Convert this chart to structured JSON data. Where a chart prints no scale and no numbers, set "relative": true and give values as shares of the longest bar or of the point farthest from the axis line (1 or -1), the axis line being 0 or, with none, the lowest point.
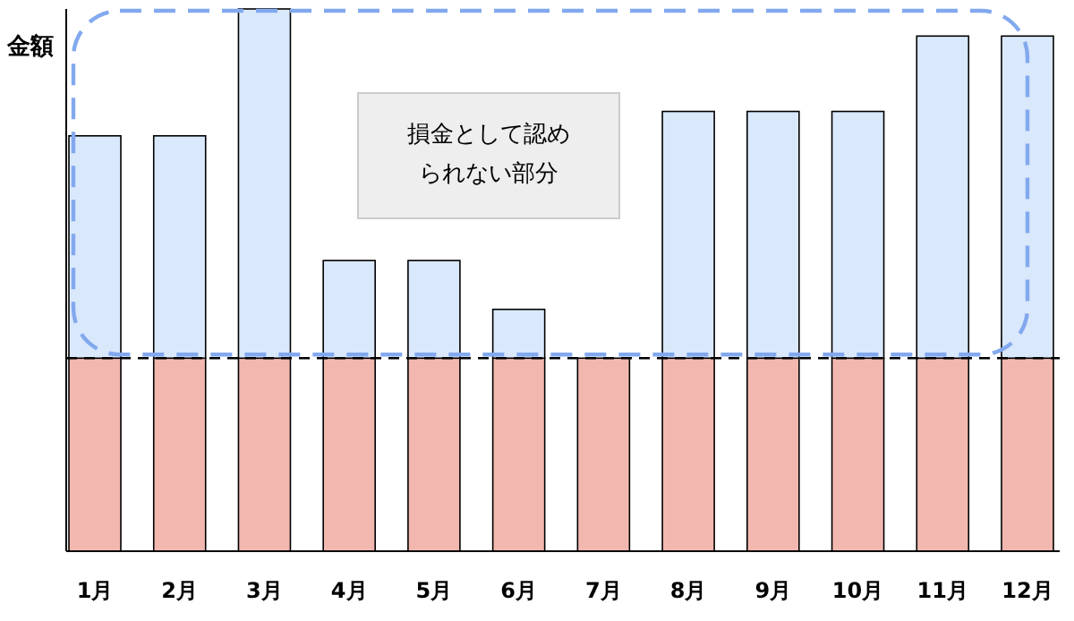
{
  "chart_data": {
    "type": "bar",
    "stacked": true,
    "relative": true,
    "ylabel": "金額",
    "categories": [
      "1月",
      "2月",
      "3月",
      "4月",
      "5月",
      "6月",
      "7月",
      "8月",
      "9月",
      "10月",
      "11月",
      "12月"
    ],
    "series": [
      {
        "color": "#f2b8b0",
        "values": [
          0.356,
          0.356,
          0.356,
          0.356,
          0.356,
          0.356,
          0.356,
          0.356,
          0.356,
          0.356,
          0.356,
          0.356
        ]
      },
      {
        "color": "#dae8fc",
        "values": [
          0.41,
          0.41,
          0.644,
          0.18,
          0.18,
          0.09,
          0,
          0.455,
          0.455,
          0.455,
          0.594,
          0.594
        ]
      }
    ],
    "ref_lines": [
      {
        "axis": "y",
        "value": 0.356,
        "color": "#000000",
        "line_style": "dashed"
      }
    ],
    "annotations": [
      "損金として認められない部分"
    ]
  }
}
